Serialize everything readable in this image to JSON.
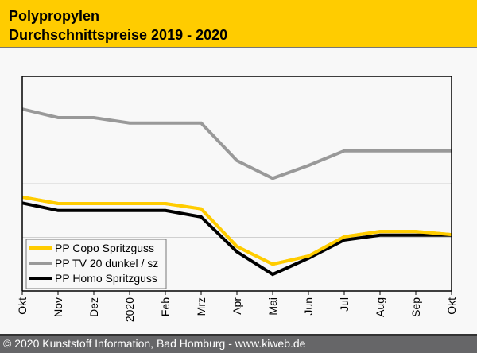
{
  "header": {
    "title_line1": "Polypropylen",
    "title_line2": "Durchschnittspreise 2019 - 2020"
  },
  "footer": {
    "copyright": "© 2020 Kunststoff Information, Bad Homburg - www.kiweb.de"
  },
  "colors": {
    "header_bg": "#ffcc00",
    "footer_bg": "#666668",
    "copo": "#ffcc00",
    "tv20": "#999999",
    "homo": "#000000"
  },
  "chart_data": {
    "type": "line",
    "title": "Polypropylen Durchschnittspreise 2019 - 2020",
    "xlabel": "",
    "ylabel": "",
    "categories": [
      "Okt",
      "Nov",
      "Dez",
      "2020",
      "Feb",
      "Mrz",
      "Apr",
      "Mai",
      "Jun",
      "Jul",
      "Aug",
      "Sep",
      "Okt"
    ],
    "ylim": [
      0,
      4
    ],
    "y_unit_note": "relative units (no y-axis labels shown); gridlines at 1, 2, 3",
    "gridlines": [
      1,
      2,
      3
    ],
    "grid": true,
    "legend_position": "bottom-left",
    "series": [
      {
        "name": "PP Copo Spritzguss",
        "color": "#ffcc00",
        "values": [
          1.75,
          1.63,
          1.63,
          1.63,
          1.63,
          1.53,
          0.83,
          0.5,
          0.65,
          1.01,
          1.11,
          1.11,
          1.05
        ]
      },
      {
        "name": "PP TV 20 dunkel / sz",
        "color": "#999999",
        "values": [
          3.39,
          3.23,
          3.23,
          3.13,
          3.13,
          3.13,
          2.43,
          2.1,
          2.34,
          2.61,
          2.61,
          2.61,
          2.61
        ]
      },
      {
        "name": "PP Homo Spritzguss",
        "color": "#000000",
        "values": [
          1.64,
          1.5,
          1.5,
          1.5,
          1.5,
          1.38,
          0.73,
          0.31,
          0.61,
          0.95,
          1.04,
          1.04,
          1.04
        ]
      }
    ]
  }
}
